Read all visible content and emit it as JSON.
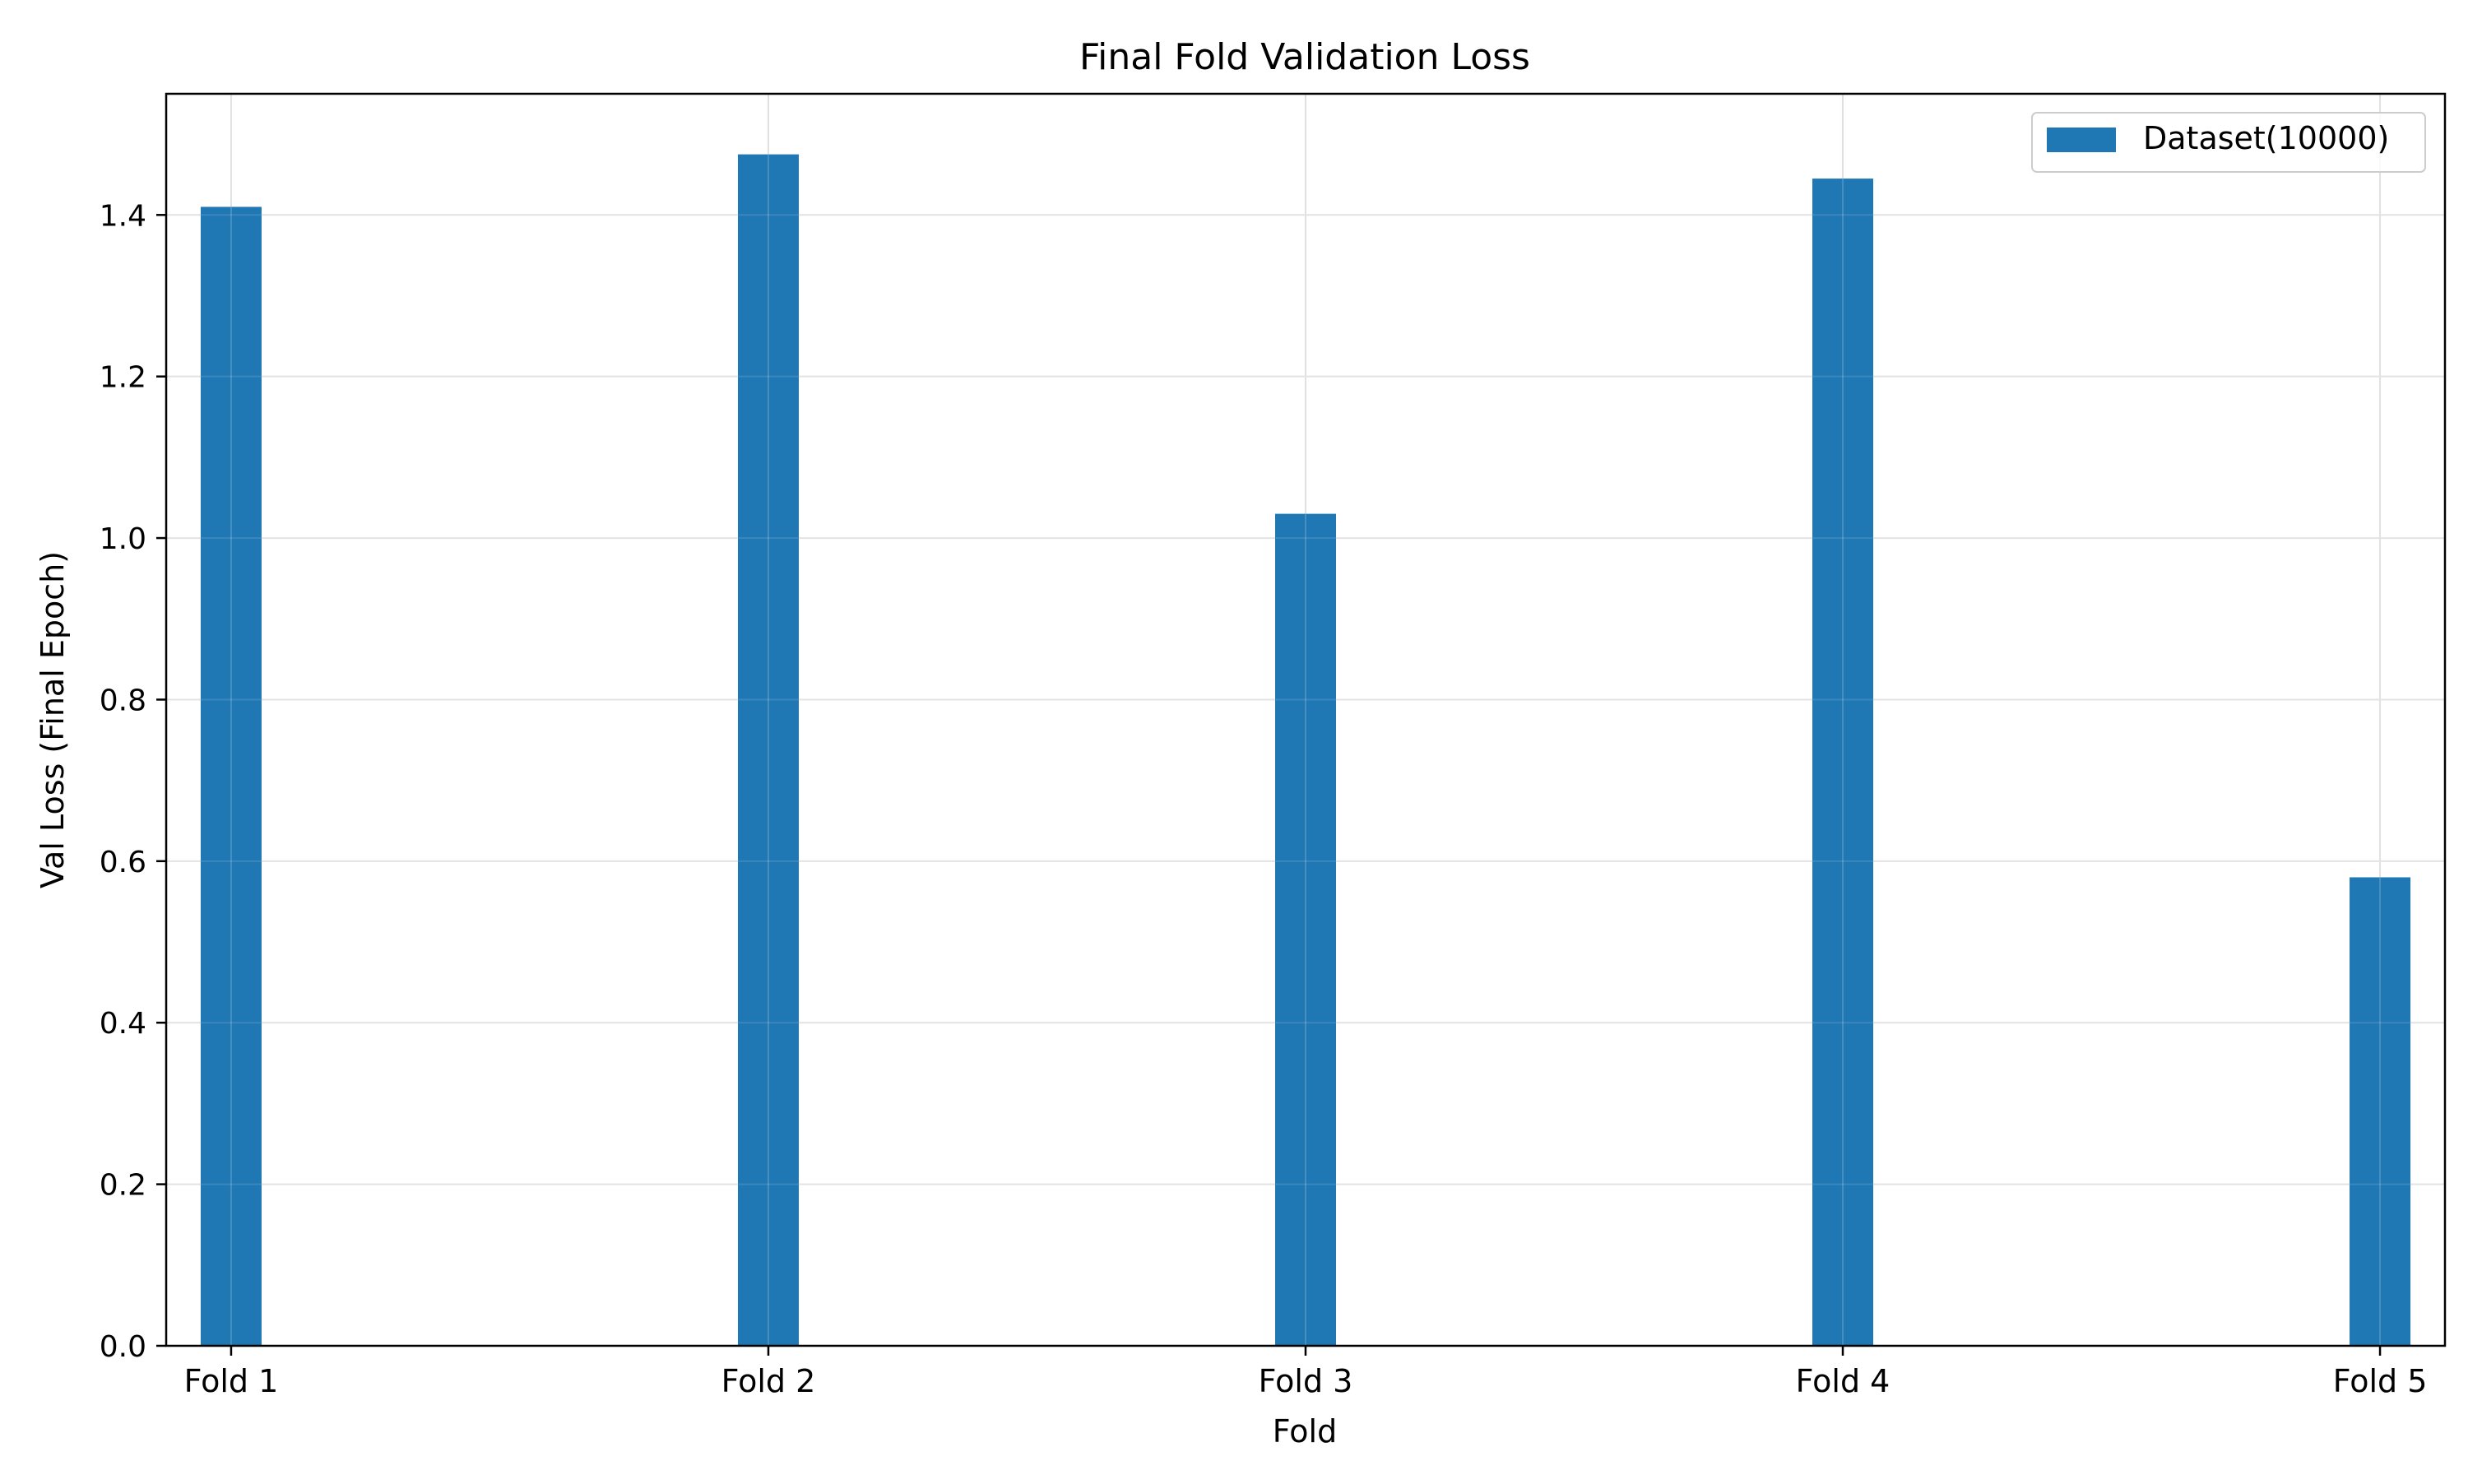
{
  "chart_data": {
    "type": "bar",
    "title": "Final Fold Validation Loss",
    "xlabel": "Fold",
    "ylabel": "Val Loss (Final Epoch)",
    "categories": [
      "Fold 1",
      "Fold 2",
      "Fold 3",
      "Fold 4",
      "Fold 5"
    ],
    "series": [
      {
        "name": "Dataset(10000)",
        "values": [
          1.41,
          1.475,
          1.03,
          1.445,
          0.58
        ]
      }
    ],
    "ylim": [
      0,
      1.55
    ],
    "yticks": [
      0.0,
      0.2,
      0.4,
      0.6,
      0.8,
      1.0,
      1.2,
      1.4
    ],
    "ytick_labels": [
      "0.0",
      "0.2",
      "0.4",
      "0.6",
      "0.8",
      "1.0",
      "1.2",
      "1.4"
    ],
    "grid": true,
    "legend_position": "top-right",
    "colors": {
      "bar": "#1f77b4",
      "grid": "#e0e0e0",
      "axis": "#000000"
    }
  }
}
